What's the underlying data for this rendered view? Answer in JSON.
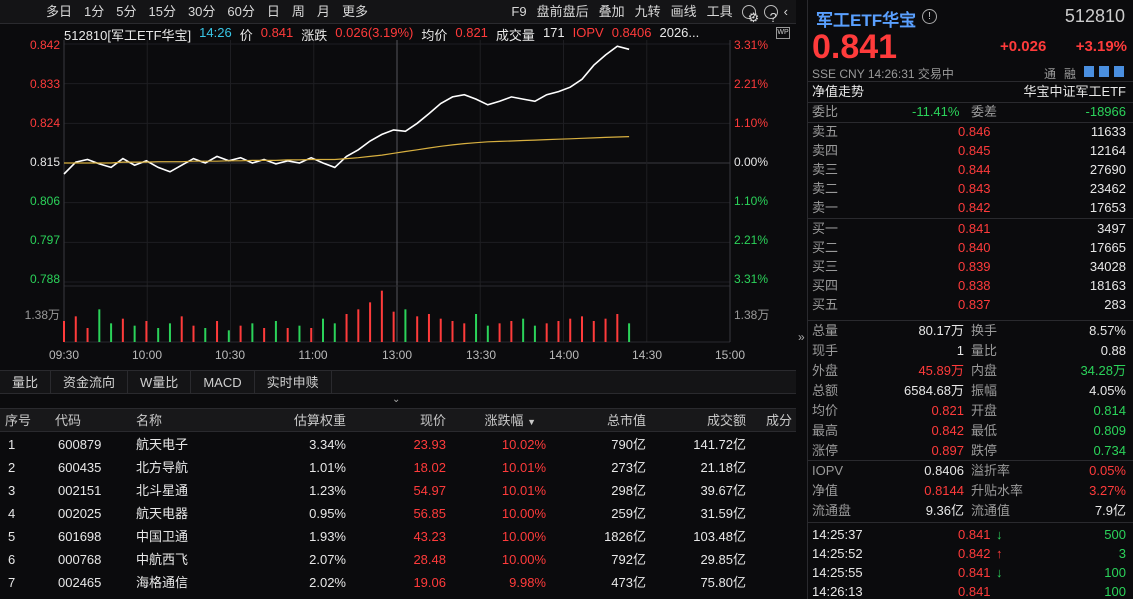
{
  "toolbar": {
    "left": [
      "多日",
      "1分",
      "5分",
      "15分",
      "30分",
      "60分",
      "日",
      "周",
      "月",
      "更多"
    ],
    "right": [
      "F9",
      "盘前盘后",
      "叠加",
      "九转",
      "画线",
      "工具"
    ]
  },
  "info": {
    "code": "512810[军工ETF华宝]",
    "time": "14:26",
    "price_label": "价",
    "price": "0.841",
    "chg_label": "涨跌",
    "chg": "0.026(3.19%)",
    "avg_label": "均价",
    "avg": "0.821",
    "vol_label": "成交量",
    "vol": "171",
    "iopv_label": "IOPV",
    "iopv": "0.8406",
    "date": "2026..."
  },
  "yaxis_left": [
    "0.842",
    "0.833",
    "0.824",
    "0.815",
    "0.806",
    "0.797",
    "0.788"
  ],
  "yaxis_right": [
    "3.31%",
    "2.21%",
    "1.10%",
    "0.00%",
    "1.10%",
    "2.21%",
    "3.31%"
  ],
  "vol_axis": {
    "left": "1.38万",
    "right": "1.38万"
  },
  "xaxis": [
    "09:30",
    "10:00",
    "10:30",
    "11:00",
    "13:00",
    "13:30",
    "14:00",
    "14:30",
    "15:00"
  ],
  "chart_data": {
    "type": "line",
    "series": [
      {
        "values": [
          0.8125,
          0.8152,
          0.8158,
          0.8148,
          0.814,
          0.816,
          0.8145,
          0.8155,
          0.814,
          0.813,
          0.8145,
          0.816,
          0.815,
          0.8165,
          0.8155,
          0.8162,
          0.815,
          0.8158,
          0.8148,
          0.8155,
          0.815,
          0.8162,
          0.815,
          0.814,
          0.8165,
          0.818,
          0.82,
          0.8215,
          0.8225,
          0.8222,
          0.824,
          0.8262,
          0.8285,
          0.83,
          0.8305,
          0.8295,
          0.8282,
          0.829,
          0.83,
          0.8295,
          0.829,
          0.8305,
          0.8312,
          0.8322,
          0.834,
          0.8372,
          0.8395,
          0.8415,
          0.8408
        ]
      },
      {
        "values": [
          0.815,
          0.815,
          0.815,
          0.815,
          0.815,
          0.8152,
          0.8152,
          0.8152,
          0.8153,
          0.8153,
          0.8153,
          0.8154,
          0.8154,
          0.8154,
          0.8155,
          0.8155,
          0.8156,
          0.8156,
          0.8156,
          0.8157,
          0.8157,
          0.8158,
          0.8158,
          0.8158,
          0.816,
          0.8162,
          0.8165,
          0.8168,
          0.8172,
          0.8176,
          0.818,
          0.8184,
          0.8188,
          0.8191,
          0.8194,
          0.8196,
          0.8198,
          0.8199,
          0.82,
          0.8201,
          0.8202,
          0.8203,
          0.8204,
          0.8205,
          0.8206,
          0.8207,
          0.8208,
          0.8209,
          0.821
        ]
      }
    ],
    "ylim": [
      0.788,
      0.842
    ],
    "base": 0.815,
    "volumes": [
      0.45,
      0.55,
      0.3,
      0.7,
      0.4,
      0.5,
      0.35,
      0.45,
      0.3,
      0.4,
      0.55,
      0.35,
      0.3,
      0.45,
      0.25,
      0.35,
      0.4,
      0.3,
      0.45,
      0.3,
      0.35,
      0.3,
      0.5,
      0.4,
      0.6,
      0.7,
      0.85,
      1.1,
      0.65,
      0.7,
      0.55,
      0.6,
      0.5,
      0.45,
      0.4,
      0.6,
      0.35,
      0.4,
      0.45,
      0.5,
      0.35,
      0.4,
      0.45,
      0.5,
      0.55,
      0.45,
      0.5,
      0.6,
      0.4
    ]
  },
  "subtabs": [
    "量比",
    "资金流向",
    "W量比",
    "MACD",
    "实时申赎"
  ],
  "table": {
    "headers": [
      "序号",
      "代码",
      "名称",
      "估算权重",
      "现价",
      "涨跌幅",
      "总市值",
      "成交额",
      "成分"
    ],
    "rows": [
      [
        "1",
        "600879",
        "航天电子",
        "3.34%",
        "23.93",
        "10.02%",
        "790亿",
        "141.72亿"
      ],
      [
        "2",
        "600435",
        "北方导航",
        "1.01%",
        "18.02",
        "10.01%",
        "273亿",
        "21.18亿"
      ],
      [
        "3",
        "002151",
        "北斗星通",
        "1.23%",
        "54.97",
        "10.01%",
        "298亿",
        "39.67亿"
      ],
      [
        "4",
        "002025",
        "航天电器",
        "0.95%",
        "56.85",
        "10.00%",
        "259亿",
        "31.59亿"
      ],
      [
        "5",
        "601698",
        "中国卫通",
        "1.93%",
        "43.23",
        "10.00%",
        "1826亿",
        "103.48亿"
      ],
      [
        "6",
        "000768",
        "中航西飞",
        "2.07%",
        "28.48",
        "10.00%",
        "792亿",
        "29.85亿"
      ],
      [
        "7",
        "002465",
        "海格通信",
        "2.02%",
        "19.06",
        "9.98%",
        "473亿",
        "75.80亿"
      ]
    ]
  },
  "quote": {
    "name": "军工ETF华宝",
    "code": "512810",
    "price": "0.841",
    "chg": "+0.026",
    "pct": "+3.19%",
    "market": "SSE",
    "currency": "CNY",
    "time": "14:26:31",
    "status": "交易中",
    "tag1": "通",
    "tag2": "融",
    "nav_trend": "净值走势",
    "index_name": "华宝中证军工ETF",
    "weibi_label": "委比",
    "weibi": "-11.41%",
    "weicha_label": "委差",
    "weicha": "-18966",
    "asks": [
      [
        "卖五",
        "0.846",
        "11633"
      ],
      [
        "卖四",
        "0.845",
        "12164"
      ],
      [
        "卖三",
        "0.844",
        "27690"
      ],
      [
        "卖二",
        "0.843",
        "23462"
      ],
      [
        "卖一",
        "0.842",
        "17653"
      ]
    ],
    "bids": [
      [
        "买一",
        "0.841",
        "3497"
      ],
      [
        "买二",
        "0.840",
        "17665"
      ],
      [
        "买三",
        "0.839",
        "34028"
      ],
      [
        "买四",
        "0.838",
        "18163"
      ],
      [
        "买五",
        "0.837",
        "283"
      ]
    ],
    "stats": [
      [
        "总量",
        "80.17万",
        "换手",
        "8.57%"
      ],
      [
        "现手",
        "1",
        "量比",
        "0.88"
      ],
      [
        "外盘",
        "45.89万",
        "内盘",
        "34.28万"
      ],
      [
        "总额",
        "6584.68万",
        "振幅",
        "4.05%"
      ],
      [
        "均价",
        "0.821",
        "开盘",
        "0.814"
      ],
      [
        "最高",
        "0.842",
        "最低",
        "0.809"
      ],
      [
        "涨停",
        "0.897",
        "跌停",
        "0.734"
      ]
    ],
    "etf": [
      [
        "IOPV",
        "0.8406",
        "溢折率",
        "0.05%"
      ],
      [
        "净值",
        "0.8144",
        "升贴水率",
        "3.27%"
      ],
      [
        "流通盘",
        "9.36亿",
        "流通值",
        "7.9亿"
      ]
    ],
    "ticks": [
      [
        "14:25:37",
        "0.841",
        "↓",
        "500"
      ],
      [
        "14:25:52",
        "0.842",
        "↑",
        "3"
      ],
      [
        "14:25:55",
        "0.841",
        "↓",
        "100"
      ],
      [
        "14:26:13",
        "0.841",
        "",
        "100"
      ]
    ]
  }
}
